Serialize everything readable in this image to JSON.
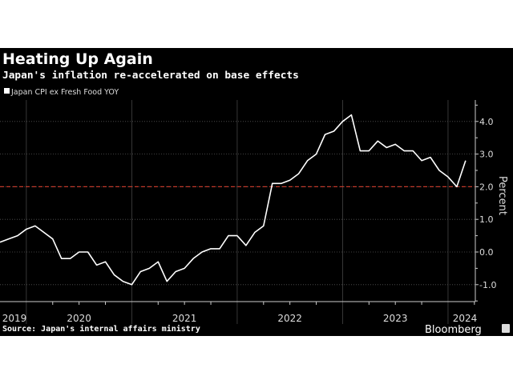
{
  "chart_data": {
    "type": "line",
    "title": "Heating Up Again",
    "subtitle": "Japan's inflation re-accelerated on base effects",
    "ylabel": "Percent",
    "xlabel": "",
    "ylim": [
      -1.5,
      4.7
    ],
    "yticks": [
      "-1.0",
      "0.0",
      "1.0",
      "2.0",
      "3.0",
      "4.0"
    ],
    "ytick_values": [
      -1,
      0,
      1,
      2,
      3,
      4
    ],
    "xticks": [
      "2019",
      "2020",
      "2021",
      "2022",
      "2023",
      "2024"
    ],
    "grid": true,
    "legend_position": "top-left",
    "reference_line": {
      "value": 2.0,
      "color": "#c0392b",
      "style": "dashed"
    },
    "series": [
      {
        "name": "Japan CPI ex Fresh Food YOY",
        "color": "#ffffff",
        "x": [
          "2019-09",
          "2019-10",
          "2019-11",
          "2019-12",
          "2020-01",
          "2020-02",
          "2020-03",
          "2020-04",
          "2020-05",
          "2020-06",
          "2020-07",
          "2020-08",
          "2020-09",
          "2020-10",
          "2020-11",
          "2020-12",
          "2021-01",
          "2021-02",
          "2021-03",
          "2021-04",
          "2021-05",
          "2021-06",
          "2021-07",
          "2021-08",
          "2021-09",
          "2021-10",
          "2021-11",
          "2021-12",
          "2022-01",
          "2022-02",
          "2022-03",
          "2022-04",
          "2022-05",
          "2022-06",
          "2022-07",
          "2022-08",
          "2022-09",
          "2022-10",
          "2022-11",
          "2022-12",
          "2023-01",
          "2023-02",
          "2023-03",
          "2023-04",
          "2023-05",
          "2023-06",
          "2023-07",
          "2023-08",
          "2023-09",
          "2023-10",
          "2023-11",
          "2023-12",
          "2024-01",
          "2024-02"
        ],
        "values": [
          0.3,
          0.4,
          0.5,
          0.7,
          0.8,
          0.6,
          0.4,
          -0.2,
          -0.2,
          0.0,
          0.0,
          -0.4,
          -0.3,
          -0.7,
          -0.9,
          -1.0,
          -0.6,
          -0.5,
          -0.3,
          -0.9,
          -0.6,
          -0.5,
          -0.2,
          0.0,
          0.1,
          0.1,
          0.5,
          0.5,
          0.2,
          0.6,
          0.8,
          2.1,
          2.1,
          2.2,
          2.4,
          2.8,
          3.0,
          3.6,
          3.7,
          4.0,
          4.2,
          3.1,
          3.1,
          3.4,
          3.2,
          3.3,
          3.1,
          3.1,
          2.8,
          2.9,
          2.5,
          2.3,
          2.0,
          2.8
        ]
      }
    ]
  },
  "footer": {
    "source": "Source: Japan's internal affairs ministry",
    "brand": "Bloomberg"
  }
}
